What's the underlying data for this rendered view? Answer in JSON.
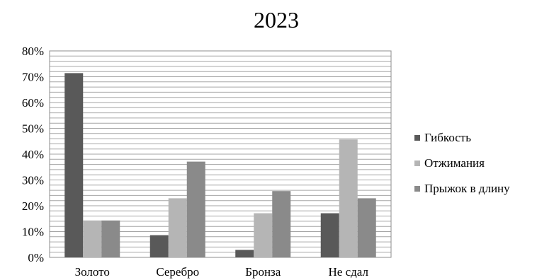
{
  "chart_data": {
    "type": "bar",
    "title": "2023",
    "categories": [
      "Золото",
      "Серебро",
      "Бронза",
      "Не сдал"
    ],
    "series": [
      {
        "name": "Гибкость",
        "color": "#595959",
        "values": [
          71.4,
          8.6,
          2.9,
          17.1
        ]
      },
      {
        "name": "Отжимания",
        "color": "#b5b5b5",
        "values": [
          14.3,
          22.9,
          17.1,
          45.7
        ]
      },
      {
        "name": "Прыжок в длину",
        "color": "#8a8a8a",
        "values": [
          14.3,
          37.1,
          25.7,
          22.9
        ]
      }
    ],
    "ylim": [
      0,
      80
    ],
    "yticks": [
      "0%",
      "10%",
      "20%",
      "30%",
      "40%",
      "50%",
      "60%",
      "70%",
      "80%"
    ],
    "xlabel": "",
    "ylabel": "",
    "grid": true,
    "legend_position": "right"
  }
}
